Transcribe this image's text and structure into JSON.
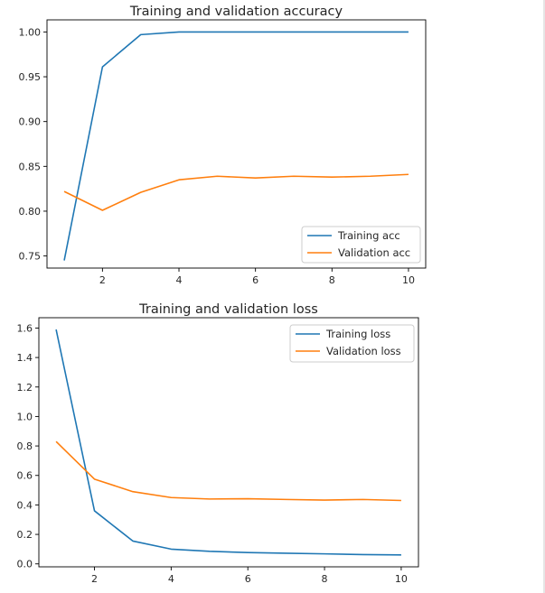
{
  "colors": {
    "training": "#1f77b4",
    "validation": "#ff7f0e",
    "axis": "#000000",
    "legend_border": "#cccccc"
  },
  "chart_data": [
    {
      "type": "line",
      "title": "Training and validation accuracy",
      "xlabel": "",
      "ylabel": "",
      "x": [
        1,
        2,
        3,
        4,
        5,
        6,
        7,
        8,
        9,
        10
      ],
      "xlim": [
        0.55,
        10.45
      ],
      "ylim": [
        0.7365,
        1.0135
      ],
      "xticks": [
        2,
        4,
        6,
        8,
        10
      ],
      "xtick_labels": [
        "2",
        "4",
        "6",
        "8",
        "10"
      ],
      "yticks": [
        0.75,
        0.8,
        0.85,
        0.9,
        0.95,
        1.0
      ],
      "ytick_labels": [
        "0.75",
        "0.80",
        "0.85",
        "0.90",
        "0.95",
        "1.00"
      ],
      "grid": false,
      "legend_position": "lower right",
      "series": [
        {
          "name": "Training acc",
          "color": "#1f77b4",
          "values": [
            0.745,
            0.961,
            0.997,
            1.0,
            1.0,
            1.0,
            1.0,
            1.0,
            1.0,
            1.0
          ]
        },
        {
          "name": "Validation acc",
          "color": "#ff7f0e",
          "values": [
            0.822,
            0.801,
            0.821,
            0.835,
            0.839,
            0.837,
            0.839,
            0.838,
            0.839,
            0.841
          ]
        }
      ]
    },
    {
      "type": "line",
      "title": "Training and validation loss",
      "xlabel": "",
      "ylabel": "",
      "x": [
        1,
        2,
        3,
        4,
        5,
        6,
        7,
        8,
        9,
        10
      ],
      "xlim": [
        0.55,
        10.45
      ],
      "ylim": [
        -0.02,
        1.67
      ],
      "xticks": [
        2,
        4,
        6,
        8,
        10
      ],
      "xtick_labels": [
        "2",
        "4",
        "6",
        "8",
        "10"
      ],
      "yticks": [
        0.0,
        0.2,
        0.4,
        0.6,
        0.8,
        1.0,
        1.2,
        1.4,
        1.6
      ],
      "ytick_labels": [
        "0.0",
        "0.2",
        "0.4",
        "0.6",
        "0.8",
        "1.0",
        "1.2",
        "1.4",
        "1.6"
      ],
      "grid": false,
      "legend_position": "upper right",
      "series": [
        {
          "name": "Training loss",
          "color": "#1f77b4",
          "values": [
            1.59,
            0.36,
            0.155,
            0.1,
            0.085,
            0.077,
            0.072,
            0.068,
            0.063,
            0.061
          ]
        },
        {
          "name": "Validation loss",
          "color": "#ff7f0e",
          "values": [
            0.83,
            0.575,
            0.49,
            0.45,
            0.44,
            0.442,
            0.437,
            0.433,
            0.437,
            0.43
          ]
        }
      ]
    }
  ]
}
